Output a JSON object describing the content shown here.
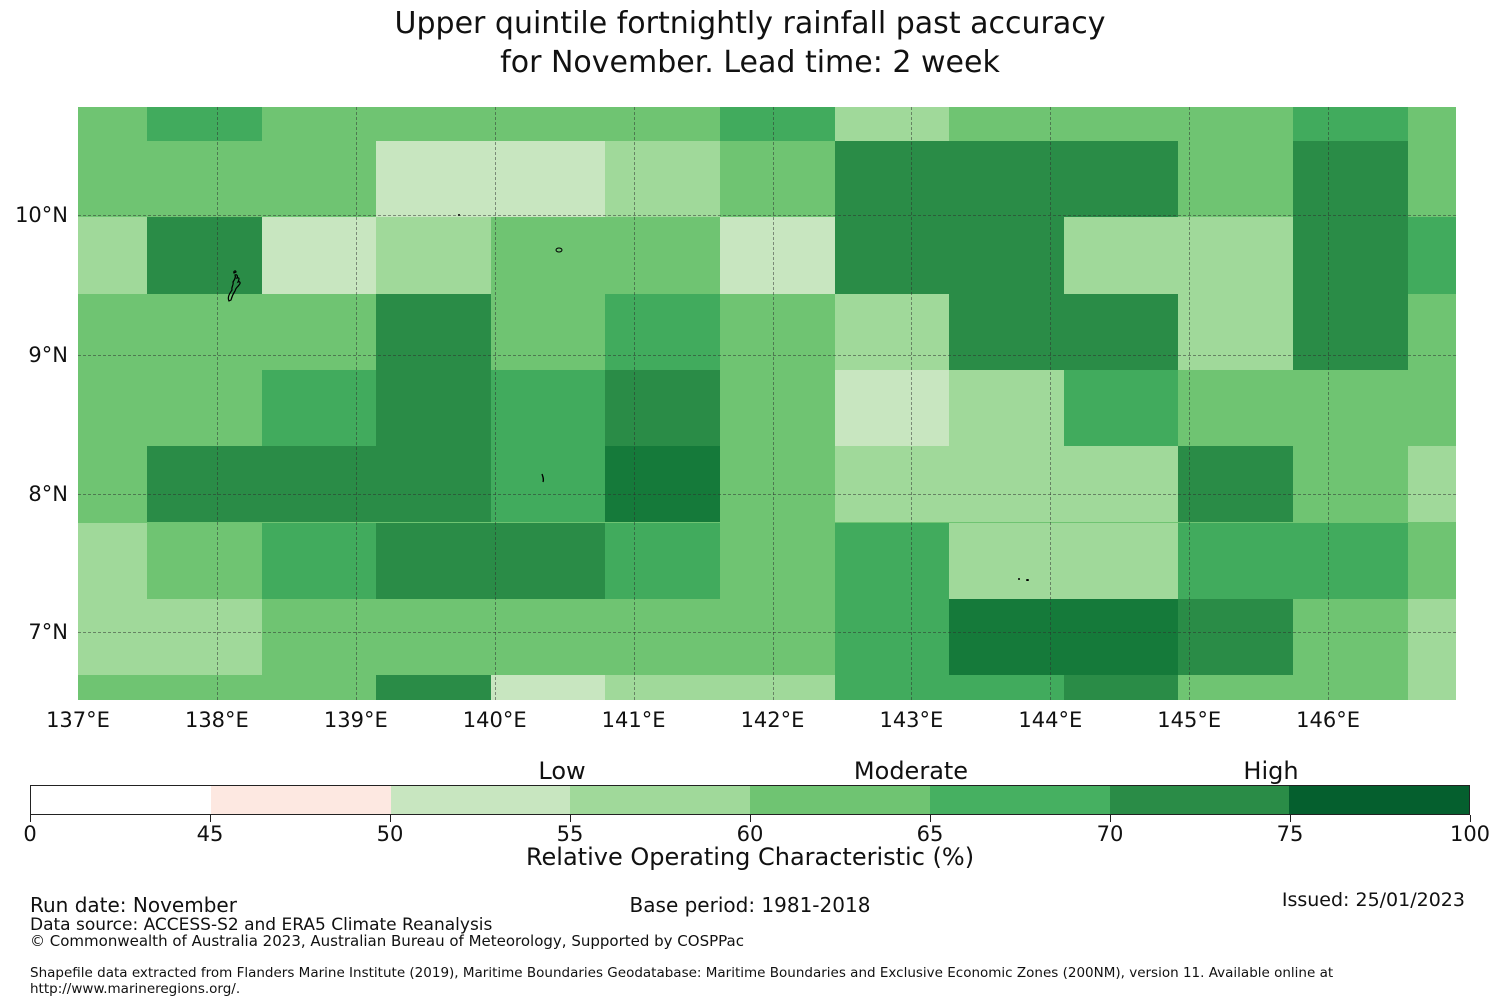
{
  "title": {
    "line1": "Upper quintile fortnightly rainfall past accuracy",
    "line2": "for November. Lead time: 2 week"
  },
  "chart_data": {
    "type": "heatmap",
    "title": "Upper quintile fortnightly rainfall past accuracy for November. Lead time: 2 week",
    "x_axis": {
      "ticks": [
        "137°E",
        "138°E",
        "139°E",
        "140°E",
        "141°E",
        "142°E",
        "143°E",
        "144°E",
        "145°E",
        "146°E"
      ],
      "range_deg": [
        137.0,
        146.92
      ]
    },
    "y_axis": {
      "ticks": [
        "10°N",
        "9°N",
        "8°N",
        "7°N"
      ],
      "range_deg": [
        6.51,
        10.77
      ]
    },
    "grid_on": true,
    "value_label": "Relative Operating Characteristic (%)",
    "palette": {
      "1": "#c8e6c0",
      "2": "#a0d99a",
      "3": "#6fc472",
      "4": "#41ab5d",
      "5": "#2a8c47",
      "6": "#157a3a"
    },
    "level_roc_ranges": {
      "1": "50-55",
      "2": "55-60",
      "3": "60-65",
      "4": "65-70",
      "5": "70-75",
      "6": "75-100"
    },
    "grid_levels": [
      [
        3,
        4,
        3,
        3,
        3,
        3,
        4,
        2,
        3,
        3,
        3,
        4,
        3
      ],
      [
        3,
        3,
        3,
        1,
        1,
        2,
        3,
        5,
        5,
        5,
        3,
        5,
        3
      ],
      [
        2,
        5,
        1,
        2,
        3,
        3,
        1,
        5,
        5,
        2,
        2,
        5,
        4
      ],
      [
        3,
        3,
        3,
        5,
        3,
        4,
        3,
        2,
        5,
        5,
        2,
        5,
        3
      ],
      [
        3,
        3,
        4,
        5,
        4,
        5,
        3,
        1,
        2,
        4,
        3,
        3,
        3
      ],
      [
        3,
        5,
        5,
        5,
        4,
        6,
        3,
        2,
        2,
        2,
        5,
        3,
        2
      ],
      [
        2,
        3,
        4,
        5,
        5,
        4,
        3,
        4,
        2,
        2,
        4,
        4,
        3
      ],
      [
        2,
        2,
        3,
        3,
        3,
        3,
        3,
        4,
        6,
        6,
        5,
        3,
        2
      ],
      [
        3,
        3,
        3,
        5,
        1,
        2,
        2,
        4,
        4,
        5,
        3,
        3,
        2
      ]
    ]
  },
  "colorbar": {
    "title": "Relative Operating Characteristic (%)",
    "ticks": [
      "0",
      "45",
      "50",
      "55",
      "60",
      "65",
      "70",
      "75",
      "100"
    ],
    "segments": [
      {
        "range": "0-45",
        "color": "#ffffff"
      },
      {
        "range": "45-50",
        "color": "#fde8e1"
      },
      {
        "range": "50-55",
        "color": "#c8e6c0"
      },
      {
        "range": "55-60",
        "color": "#a0d99a"
      },
      {
        "range": "60-65",
        "color": "#6fc472"
      },
      {
        "range": "65-70",
        "color": "#46b061"
      },
      {
        "range": "70-75",
        "color": "#2a8c47"
      },
      {
        "range": "75-100",
        "color": "#055f2e"
      }
    ],
    "categories": [
      {
        "label": "Low"
      },
      {
        "label": "Moderate"
      },
      {
        "label": "High"
      }
    ]
  },
  "footer": {
    "run_date": "Run date: November",
    "base_period": "Base period: 1981-2018",
    "issued": "Issued: 25/01/2023",
    "data_source": "Data source: ACCESS-S2 and ERA5 Climate Reanalysis",
    "copyright": "© Commonwealth of Australia 2023, Australian Bureau of Meteorology, Supported by COSPPac",
    "shapefile": "Shapefile data extracted from Flanders Marine Institute (2019), Maritime Boundaries Geodatabase: Maritime Boundaries and Exclusive Economic Zones (200NM), version 11. Available online at http://www.marineregions.org/."
  }
}
